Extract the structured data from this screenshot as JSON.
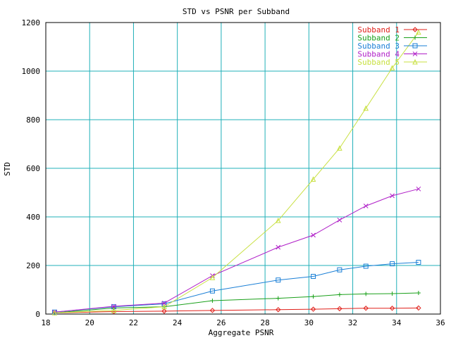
{
  "chart_data": {
    "type": "line",
    "title": "STD vs PSNR per Subband",
    "xlabel": "Aggregate PSNR",
    "ylabel": "STD",
    "xlim": [
      18,
      36
    ],
    "ylim": [
      0,
      1200
    ],
    "xticks": [
      18,
      20,
      22,
      24,
      26,
      28,
      30,
      32,
      34,
      36
    ],
    "yticks": [
      0,
      200,
      400,
      600,
      800,
      1000,
      1200
    ],
    "grid": true,
    "legend_position": "top-right",
    "series": [
      {
        "name": "Subband 1",
        "color": "#e0201a",
        "marker": "diamond",
        "x": [
          18.4,
          21.1,
          23.4,
          25.6,
          28.6,
          30.2,
          31.4,
          32.6,
          33.8,
          35.0
        ],
        "y": [
          5,
          10,
          12,
          15,
          18,
          20,
          22,
          24,
          24,
          25
        ]
      },
      {
        "name": "Subband 2",
        "color": "#1aa01a",
        "marker": "plus",
        "x": [
          18.4,
          21.1,
          23.4,
          25.6,
          28.6,
          30.2,
          31.4,
          32.6,
          33.8,
          35.0
        ],
        "y": [
          5,
          25,
          30,
          55,
          65,
          72,
          80,
          83,
          84,
          87
        ]
      },
      {
        "name": "Subband 3",
        "color": "#1a7fd6",
        "marker": "square",
        "x": [
          18.4,
          21.1,
          23.4,
          25.6,
          28.6,
          30.2,
          31.4,
          32.6,
          33.8,
          35.0
        ],
        "y": [
          8,
          30,
          42,
          95,
          140,
          155,
          182,
          197,
          207,
          213
        ]
      },
      {
        "name": "Subband 4",
        "color": "#b020c8",
        "marker": "cross",
        "x": [
          18.4,
          21.1,
          23.4,
          25.6,
          28.6,
          30.2,
          31.4,
          32.6,
          33.8,
          35.0
        ],
        "y": [
          8,
          32,
          45,
          158,
          275,
          325,
          387,
          445,
          487,
          515
        ]
      },
      {
        "name": "Subband 5",
        "color": "#c8e040",
        "marker": "triangle",
        "x": [
          18.4,
          21.1,
          23.4,
          25.6,
          28.6,
          30.2,
          31.4,
          32.6,
          33.8,
          35.0
        ],
        "y": [
          5,
          15,
          30,
          150,
          385,
          555,
          683,
          847,
          1013,
          1160
        ]
      }
    ]
  }
}
